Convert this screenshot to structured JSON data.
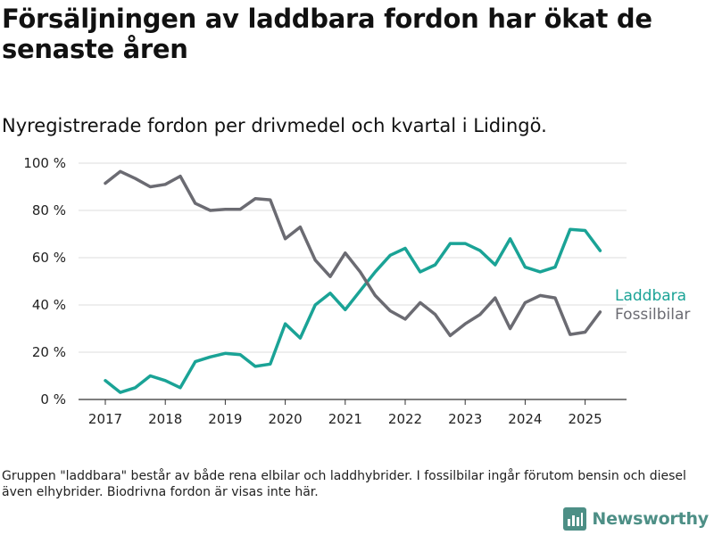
{
  "header": {
    "title": "Försäljningen av laddbara fordon har ökat de senaste åren",
    "subtitle": "Nyregistrerade fordon per drivmedel och kvartal i Lidingö."
  },
  "footer": {
    "note": "Gruppen \"laddbara\" består av både rena elbilar och laddhybrider. I fossilbilar ingår förutom bensin och diesel även elhybrider. Biodrivna fordon är visas inte här.",
    "brand": "Newsworthy"
  },
  "chart_data": {
    "type": "line",
    "title": "Försäljningen av laddbara fordon har ökat de senaste åren",
    "subtitle": "Nyregistrerade fordon per drivmedel och kvartal i Lidingö.",
    "xlabel": "",
    "ylabel": "",
    "x": [
      "2017 Q1",
      "2017 Q2",
      "2017 Q3",
      "2017 Q4",
      "2018 Q1",
      "2018 Q2",
      "2018 Q3",
      "2018 Q4",
      "2019 Q1",
      "2019 Q2",
      "2019 Q3",
      "2019 Q4",
      "2020 Q1",
      "2020 Q2",
      "2020 Q3",
      "2020 Q4",
      "2021 Q1",
      "2021 Q2",
      "2021 Q3",
      "2021 Q4",
      "2022 Q1",
      "2022 Q2",
      "2022 Q3",
      "2022 Q4",
      "2023 Q1",
      "2023 Q2",
      "2023 Q3",
      "2023 Q4",
      "2024 Q1",
      "2024 Q2",
      "2024 Q3",
      "2024 Q4",
      "2025 Q1",
      "2025 Q2"
    ],
    "x_ticks": [
      "2017",
      "2018",
      "2019",
      "2020",
      "2021",
      "2022",
      "2023",
      "2024",
      "2025"
    ],
    "y_ticks": [
      "0 %",
      "20 %",
      "40 %",
      "60 %",
      "80 %",
      "100 %"
    ],
    "ylim": [
      0,
      100
    ],
    "grid": true,
    "legend": "direct labels at line ends",
    "series": [
      {
        "name": "Laddbara",
        "color": "#1aa396",
        "values": [
          8,
          3,
          5,
          10,
          8,
          5,
          16,
          18,
          19.5,
          19,
          14,
          15,
          32,
          26,
          40,
          45,
          38,
          46,
          54,
          61,
          64,
          54,
          57,
          66,
          66,
          63,
          57,
          68,
          56,
          54,
          56,
          72,
          71.5,
          63
        ]
      },
      {
        "name": "Fossilbilar",
        "color": "#6b6b72",
        "values": [
          91.5,
          96.5,
          93.5,
          90,
          91,
          94.5,
          83,
          80,
          80.5,
          80.5,
          85,
          84.5,
          68,
          73,
          59,
          52,
          62,
          54,
          44,
          37.5,
          34,
          41,
          36,
          27,
          32,
          36,
          43,
          30,
          41,
          44,
          43,
          27.5,
          28.5,
          37
        ]
      }
    ]
  }
}
